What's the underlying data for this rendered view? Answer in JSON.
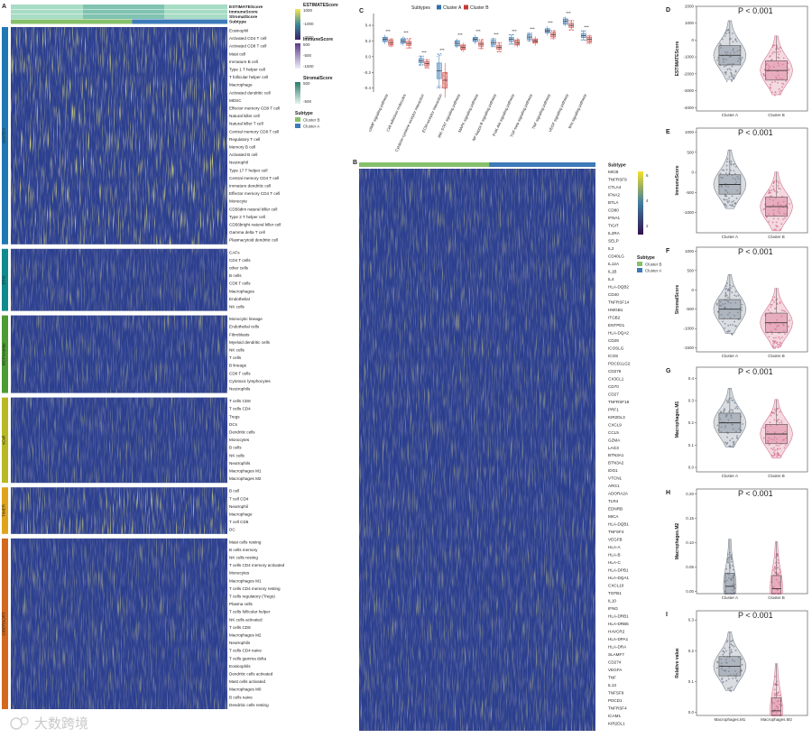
{
  "panel_letters": {
    "A": "A",
    "B": "B",
    "C": "C",
    "D": "D",
    "E": "E",
    "F": "F",
    "G": "G",
    "H": "H",
    "I": "I"
  },
  "panel_a": {
    "top_bars": [
      "ESTIMATEScore",
      "ImmuneScore",
      "StromalScore",
      "Subtype"
    ],
    "method_groups": [
      {
        "name": "ssGSEA",
        "color": "#1f78b4",
        "rows": [
          "Eosinophil",
          "Activated CD4 T cell",
          "Activated CD8 T cell",
          "Mast cell",
          "Immature B cell",
          "Type 1 T helper cell",
          "T follicular helper cell",
          "Macrophage",
          "Activated dendritic cell",
          "MDSC",
          "Effector memory CD8 T cell",
          "Natural killer cell",
          "Natural killer T cell",
          "Central memory CD8 T cell",
          "Regulatory T cell",
          "Memory B cell",
          "Activated B cell",
          "Neutrophil",
          "Type 17 T helper cell",
          "Central memory CD4 T cell",
          "Immature dendritic cell",
          "Effector memory CD4 T cell",
          "Monocyte",
          "CD56dim natural killer cell",
          "Type 2 T helper cell",
          "CD56bright natural killer cell",
          "Gamma delta T cell",
          "Plasmacytoid dendritic cell"
        ]
      },
      {
        "name": "EPIC",
        "color": "#0f8b8d",
        "rows": [
          "CAFs",
          "CD4 T cells",
          "other cells",
          "B cells",
          "CD8 T cells",
          "Macrophages",
          "Endothelial",
          "NK cells"
        ]
      },
      {
        "name": "MCPcounter",
        "color": "#4d9b32",
        "rows": [
          "Monocytic lineage",
          "Endothelial cells",
          "Fibroblasts",
          "Myeloid dendritic cells",
          "NK cells",
          "T cells",
          "B lineage",
          "CD8 T cells",
          "Cytotoxic lymphocytes",
          "Neutrophils"
        ]
      },
      {
        "name": "xCell",
        "color": "#b7b824",
        "rows": [
          "T cells CD8",
          "T cells CD4",
          "Tregs",
          "DCs",
          "Dendritic cells",
          "Monocytes",
          "B cells",
          "NK cells",
          "Neutrophils",
          "Macrophages M1",
          "Macrophages M2"
        ]
      },
      {
        "name": "TIMER",
        "color": "#e0a41c",
        "rows": [
          "B cell",
          "T cell CD4",
          "Neutrophil",
          "Macrophage",
          "T cell CD8",
          "DC"
        ]
      },
      {
        "name": "CIBERSORT",
        "color": "#d2691e",
        "rows": [
          "Mast cells resting",
          "B cells memory",
          "NK cells resting",
          "T cells CD4 memory activated",
          "Monocytes",
          "Macrophages M1",
          "T cells CD4 memory resting",
          "T cells regulatory (Tregs)",
          "Plasma cells",
          "T cells follicular helper",
          "NK cells activated",
          "T cells CD8",
          "Macrophages M2",
          "Neutrophils",
          "T cells CD4 naive",
          "T cells gamma delta",
          "Eosinophils",
          "Dendritic cells activated",
          "Mast cells activated",
          "Macrophages M0",
          "B cells naive",
          "Dendritic cells resting"
        ]
      }
    ],
    "legend": [
      {
        "title": "ESTIMATEScore",
        "ticks": [
          "1000",
          "-1000",
          "-3000"
        ]
      },
      {
        "title": "ImmuneScore",
        "ticks": [
          "500",
          "-500",
          "-1500"
        ]
      },
      {
        "title": "StromalScore",
        "ticks": [
          "500",
          "-500"
        ]
      }
    ],
    "subtype_legend": {
      "title": "Subtype",
      "items": [
        "Cluster B",
        "Cluster A"
      ]
    }
  },
  "panel_b": {
    "bar_label": "Subtype",
    "genes": [
      "MICB",
      "TNFRSF9",
      "CTLA4",
      "IFNA2",
      "BTLA",
      "CD80",
      "IFNA1",
      "TIGIT",
      "IL2RA",
      "SELP",
      "IL2",
      "CD40LG",
      "IL12A",
      "IL1B",
      "IL4",
      "HLA-DQB2",
      "CD40",
      "TNFRSF14",
      "HMGB1",
      "ITGB2",
      "ENTPD1",
      "HLA-DQA2",
      "CD28",
      "ICOSLG",
      "ICOS",
      "PDCD1LG2",
      "CD276",
      "CX3CL1",
      "CD70",
      "CD27",
      "TNFRSF18",
      "PRF1",
      "KIR2DL3",
      "CXCL9",
      "CCL5",
      "GZMA",
      "LAG3",
      "BTN3A1",
      "BTN3A2",
      "IDO1",
      "VTCN1",
      "ARG1",
      "ADORA2A",
      "TLR4",
      "EDNRB",
      "MICA",
      "HLA-DQB1",
      "TNFSF4",
      "VEGFB",
      "HLA-A",
      "HLA-B",
      "HLA-C",
      "HLA-DPB1",
      "HLA-DQA1",
      "CXCL10",
      "TGFB1",
      "IL10",
      "IFNG",
      "HLA-DRB1",
      "HLA-DRB5",
      "HAVCR2",
      "HLA-DPA1",
      "HLA-DRA",
      "SLAMF7",
      "CD274",
      "VEGFA",
      "TNF",
      "IL13",
      "TNFSF9",
      "PDCD1",
      "TNFRSF4",
      "ICAM1",
      "KIR2DL1"
    ],
    "legend_ticks": [
      "6",
      "4",
      "2"
    ],
    "subtype_legend": {
      "title": "Subtype",
      "items": [
        "Cluster B",
        "Cluster A"
      ]
    }
  },
  "chart_data": [
    {
      "panel": "C",
      "type": "box",
      "legend_title": "Subtypes",
      "legend": [
        "Cluster A",
        "Cluster B"
      ],
      "categories": [
        "cAMP signaling pathway",
        "Cell adhesion molecules",
        "Cytokine-cytokine receptor interaction",
        "ECM-receptor interaction",
        "JAK-STAT signaling pathway",
        "MAPK signaling pathway",
        "NF-kappa B signaling pathway",
        "PI3K-Akt signaling pathway",
        "TGF-beta signaling pathway",
        "TNF signaling pathway",
        "VEGF signaling pathway",
        "Wnt signaling pathway"
      ],
      "medians_a": [
        0.22,
        0.2,
        -0.05,
        -0.18,
        0.17,
        0.22,
        0.18,
        0.22,
        0.25,
        0.33,
        0.45,
        0.27
      ],
      "medians_b": [
        0.18,
        0.17,
        -0.09,
        -0.3,
        0.12,
        0.16,
        0.12,
        0.18,
        0.2,
        0.28,
        0.4,
        0.22
      ],
      "significance": [
        "***",
        "***",
        "***",
        "***",
        "***",
        "***",
        "***",
        "***",
        "***",
        "***",
        "***",
        "***"
      ],
      "yticks": [
        "0.4",
        "0.2",
        "0.0",
        "-0.2",
        "-0.4"
      ],
      "ylim": [
        -0.45,
        0.55
      ]
    },
    {
      "panel": "D",
      "type": "violin-box",
      "ylabel": "ESTIMATEScore",
      "pvalue": "P < 0.001",
      "categories": [
        "Cluster A",
        "Cluster B"
      ],
      "medians": [
        -900,
        -1800
      ],
      "yticks": [
        "2000",
        "1000",
        "0",
        "-1000",
        "-2000",
        "-3000",
        "-4000"
      ],
      "ylim": [
        -4200,
        2000
      ]
    },
    {
      "panel": "E",
      "type": "violin-box",
      "ylabel": "ImmuneScore",
      "pvalue": "P < 0.001",
      "categories": [
        "Cluster A",
        "Cluster B"
      ],
      "medians": [
        -300,
        -850
      ],
      "yticks": [
        "1000",
        "500",
        "0",
        "-500",
        "-1000"
      ],
      "ylim": [
        -1500,
        1100
      ]
    },
    {
      "panel": "F",
      "type": "violin-box",
      "ylabel": "StromalScore",
      "pvalue": "P < 0.001",
      "categories": [
        "Cluster A",
        "Cluster B"
      ],
      "medians": [
        -500,
        -850
      ],
      "yticks": [
        "1000",
        "500",
        "0",
        "-500",
        "-1000",
        "-1500"
      ],
      "ylim": [
        -1600,
        1100
      ]
    },
    {
      "panel": "G",
      "type": "violin-box",
      "ylabel": "Macrophages.M1",
      "pvalue": "P < 0.001",
      "categories": [
        "Cluster A",
        "Cluster B"
      ],
      "medians": [
        0.2,
        0.15
      ],
      "yticks": [
        "0.4",
        "0.3",
        "0.2",
        "0.1",
        "0.0"
      ],
      "ylim": [
        -0.02,
        0.45
      ]
    },
    {
      "panel": "H",
      "type": "violin-box",
      "ylabel": "Macrophages.M2",
      "pvalue": "P < 0.001",
      "categories": [
        "Cluster A",
        "Cluster B"
      ],
      "medians": [
        0.01,
        0.005
      ],
      "yticks": [
        "0.20",
        "0.15",
        "0.10",
        "0.05",
        "0.00"
      ],
      "ylim": [
        -0.005,
        0.21
      ]
    },
    {
      "panel": "I",
      "type": "violin-box",
      "ylabel": "Relative value",
      "pvalue": "P < 0.001",
      "categories": [
        "Macrophages.M1",
        "Macrophages.M2"
      ],
      "medians": [
        0.15,
        0.005
      ],
      "yticks": [
        "0.3",
        "0.2",
        "0.1",
        "0.0"
      ],
      "ylim": [
        -0.01,
        0.33
      ]
    }
  ],
  "watermark": "大数跨境",
  "colors": {
    "heat_low": "#2b3f8f",
    "heat_mid": "#3f7d9e",
    "heat_high": "#f5e02a",
    "cluster_a": "#2f6fad",
    "cluster_b": "#c83a34",
    "violin_a": "#7a8594",
    "violin_b": "#d67794",
    "bar_green": "#86c06b",
    "bar_blue": "#3d7ab8"
  }
}
